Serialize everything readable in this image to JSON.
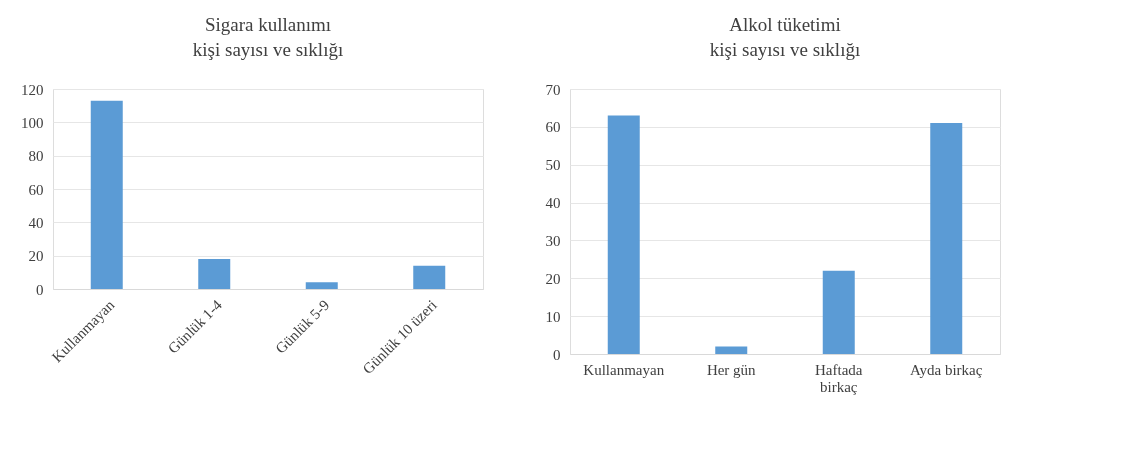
{
  "chart_data": [
    {
      "type": "bar",
      "title": "Sigara kullanımı",
      "subtitle": "kişi sayısı ve sıklığı",
      "categories": [
        "Kullanmayan",
        "Günlük 1-4",
        "Günlük 5-9",
        "Günlük 10 üzeri"
      ],
      "values": [
        113,
        18,
        4,
        14
      ],
      "color": "#5b9bd5",
      "ylim": [
        0,
        120
      ],
      "yticks": [
        0,
        20,
        40,
        60,
        80,
        100,
        120
      ],
      "grid": "y"
    },
    {
      "type": "bar",
      "title": "Alkol tüketimi",
      "subtitle": "kişi sayısı ve sıklığı",
      "categories": [
        "Kullanmayan",
        "Her gün",
        "Haftada birkaç",
        "Ayda birkaç"
      ],
      "values": [
        63,
        2,
        22,
        61
      ],
      "color": "#5b9bd5",
      "ylim": [
        0,
        70
      ],
      "yticks": [
        0,
        10,
        20,
        30,
        40,
        50,
        60,
        70
      ],
      "grid": "y"
    }
  ]
}
